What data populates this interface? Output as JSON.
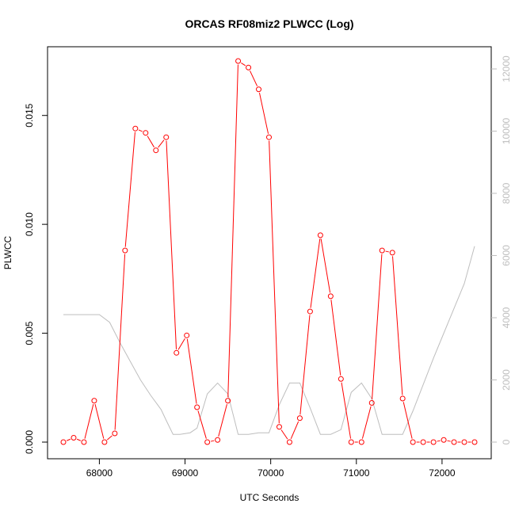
{
  "chart_data": {
    "type": "line",
    "title": "ORCAS RF08miz2 PLWCC (Log)",
    "xlabel": "UTC Seconds",
    "ylabel": "PLWCC",
    "xlim": [
      67500,
      72500
    ],
    "ylim": [
      0,
      0.0175
    ],
    "y2lim": [
      0,
      12000
    ],
    "x_ticks": [
      68000,
      69000,
      70000,
      71000,
      72000
    ],
    "x_tick_labels": [
      "68000",
      "69000",
      "70000",
      "71000",
      "72000"
    ],
    "y_ticks": [
      0,
      0.005,
      0.01,
      0.015
    ],
    "y_tick_labels": [
      "0.000",
      "0.005",
      "0.010",
      "0.015"
    ],
    "y2_ticks": [
      0,
      2000,
      4000,
      6000,
      8000,
      10000,
      12000
    ],
    "y2_tick_labels": [
      "0",
      "2000",
      "4000",
      "6000",
      "8000",
      "10000",
      "12000"
    ],
    "grid": false,
    "series": [
      {
        "role": "primary",
        "axis": "left",
        "color": "#ff0000",
        "marker": "open-circle",
        "points": [
          [
            67580,
            0.0
          ],
          [
            67700,
            0.0002
          ],
          [
            67820,
            0.0
          ],
          [
            67940,
            0.0019
          ],
          [
            68060,
            0.0
          ],
          [
            68180,
            0.0004
          ],
          [
            68300,
            0.0088
          ],
          [
            68420,
            0.0144
          ],
          [
            68540,
            0.0142
          ],
          [
            68660,
            0.0134
          ],
          [
            68780,
            0.014
          ],
          [
            68900,
            0.0041
          ],
          [
            69020,
            0.0049
          ],
          [
            69140,
            0.0016
          ],
          [
            69260,
            0.0
          ],
          [
            69380,
            0.0001
          ],
          [
            69500,
            0.0019
          ],
          [
            69620,
            0.0175
          ],
          [
            69740,
            0.0172
          ],
          [
            69860,
            0.0162
          ],
          [
            69980,
            0.014
          ],
          [
            70100,
            0.0007
          ],
          [
            70220,
            0.0
          ],
          [
            70340,
            0.0011
          ],
          [
            70460,
            0.006
          ],
          [
            70580,
            0.0095
          ],
          [
            70700,
            0.0067
          ],
          [
            70820,
            0.0029
          ],
          [
            70940,
            0.0
          ],
          [
            71060,
            0.0
          ],
          [
            71180,
            0.0018
          ],
          [
            71300,
            0.0088
          ],
          [
            71420,
            0.0087
          ],
          [
            71540,
            0.002
          ],
          [
            71660,
            0.0
          ],
          [
            71780,
            0.0
          ],
          [
            71900,
            0.0
          ],
          [
            72020,
            0.0001
          ],
          [
            72140,
            0.0
          ],
          [
            72260,
            0.0
          ],
          [
            72380,
            0.0
          ]
        ]
      },
      {
        "role": "secondary",
        "axis": "right",
        "color": "#bebebe",
        "marker": "none",
        "points": [
          [
            67580,
            4100
          ],
          [
            67700,
            4100
          ],
          [
            67820,
            4100
          ],
          [
            67940,
            4100
          ],
          [
            68000,
            4100
          ],
          [
            68120,
            3850
          ],
          [
            68240,
            3200
          ],
          [
            68360,
            2600
          ],
          [
            68480,
            2000
          ],
          [
            68600,
            1500
          ],
          [
            68720,
            1050
          ],
          [
            68780,
            700
          ],
          [
            68860,
            250
          ],
          [
            68940,
            250
          ],
          [
            69060,
            300
          ],
          [
            69140,
            450
          ],
          [
            69260,
            1550
          ],
          [
            69380,
            1900
          ],
          [
            69500,
            1550
          ],
          [
            69620,
            250
          ],
          [
            69740,
            250
          ],
          [
            69860,
            300
          ],
          [
            69980,
            300
          ],
          [
            70100,
            1200
          ],
          [
            70220,
            1900
          ],
          [
            70340,
            1900
          ],
          [
            70460,
            1100
          ],
          [
            70580,
            250
          ],
          [
            70700,
            250
          ],
          [
            70820,
            400
          ],
          [
            70940,
            1600
          ],
          [
            71060,
            1900
          ],
          [
            71180,
            1400
          ],
          [
            71300,
            250
          ],
          [
            71420,
            250
          ],
          [
            71540,
            250
          ],
          [
            71660,
            1000
          ],
          [
            71780,
            1850
          ],
          [
            71900,
            2700
          ],
          [
            72020,
            3500
          ],
          [
            72140,
            4300
          ],
          [
            72260,
            5100
          ],
          [
            72380,
            6300
          ]
        ]
      }
    ]
  }
}
